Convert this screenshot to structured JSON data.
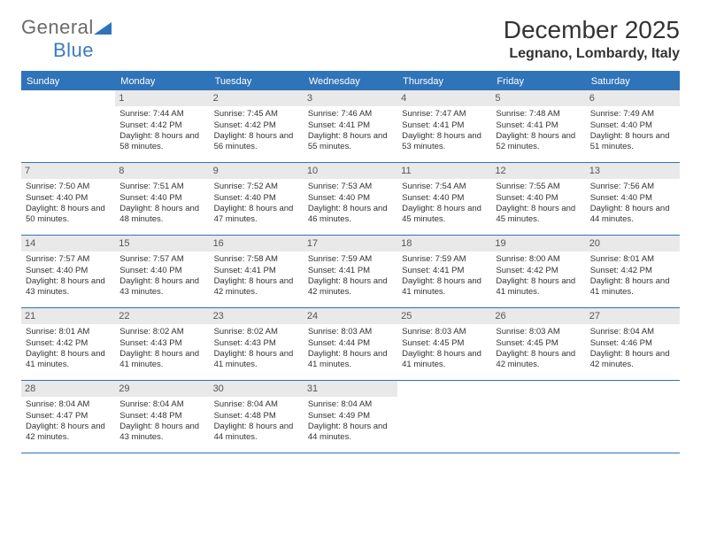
{
  "logo": {
    "general": "General",
    "blue": "Blue"
  },
  "title": "December 2025",
  "location": "Legnano, Lombardy, Italy",
  "dayHeaders": [
    "Sunday",
    "Monday",
    "Tuesday",
    "Wednesday",
    "Thursday",
    "Friday",
    "Saturday"
  ],
  "colors": {
    "headerBg": "#2f73b8",
    "dayNumBg": "#e9e9e9",
    "text": "#333333",
    "logoBlue": "#3b7bbf"
  },
  "startDayIndex": 1,
  "days": [
    {
      "n": 1,
      "sunrise": "7:44 AM",
      "sunset": "4:42 PM",
      "daylight": "8 hours and 58 minutes."
    },
    {
      "n": 2,
      "sunrise": "7:45 AM",
      "sunset": "4:42 PM",
      "daylight": "8 hours and 56 minutes."
    },
    {
      "n": 3,
      "sunrise": "7:46 AM",
      "sunset": "4:41 PM",
      "daylight": "8 hours and 55 minutes."
    },
    {
      "n": 4,
      "sunrise": "7:47 AM",
      "sunset": "4:41 PM",
      "daylight": "8 hours and 53 minutes."
    },
    {
      "n": 5,
      "sunrise": "7:48 AM",
      "sunset": "4:41 PM",
      "daylight": "8 hours and 52 minutes."
    },
    {
      "n": 6,
      "sunrise": "7:49 AM",
      "sunset": "4:40 PM",
      "daylight": "8 hours and 51 minutes."
    },
    {
      "n": 7,
      "sunrise": "7:50 AM",
      "sunset": "4:40 PM",
      "daylight": "8 hours and 50 minutes."
    },
    {
      "n": 8,
      "sunrise": "7:51 AM",
      "sunset": "4:40 PM",
      "daylight": "8 hours and 48 minutes."
    },
    {
      "n": 9,
      "sunrise": "7:52 AM",
      "sunset": "4:40 PM",
      "daylight": "8 hours and 47 minutes."
    },
    {
      "n": 10,
      "sunrise": "7:53 AM",
      "sunset": "4:40 PM",
      "daylight": "8 hours and 46 minutes."
    },
    {
      "n": 11,
      "sunrise": "7:54 AM",
      "sunset": "4:40 PM",
      "daylight": "8 hours and 45 minutes."
    },
    {
      "n": 12,
      "sunrise": "7:55 AM",
      "sunset": "4:40 PM",
      "daylight": "8 hours and 45 minutes."
    },
    {
      "n": 13,
      "sunrise": "7:56 AM",
      "sunset": "4:40 PM",
      "daylight": "8 hours and 44 minutes."
    },
    {
      "n": 14,
      "sunrise": "7:57 AM",
      "sunset": "4:40 PM",
      "daylight": "8 hours and 43 minutes."
    },
    {
      "n": 15,
      "sunrise": "7:57 AM",
      "sunset": "4:40 PM",
      "daylight": "8 hours and 43 minutes."
    },
    {
      "n": 16,
      "sunrise": "7:58 AM",
      "sunset": "4:41 PM",
      "daylight": "8 hours and 42 minutes."
    },
    {
      "n": 17,
      "sunrise": "7:59 AM",
      "sunset": "4:41 PM",
      "daylight": "8 hours and 42 minutes."
    },
    {
      "n": 18,
      "sunrise": "7:59 AM",
      "sunset": "4:41 PM",
      "daylight": "8 hours and 41 minutes."
    },
    {
      "n": 19,
      "sunrise": "8:00 AM",
      "sunset": "4:42 PM",
      "daylight": "8 hours and 41 minutes."
    },
    {
      "n": 20,
      "sunrise": "8:01 AM",
      "sunset": "4:42 PM",
      "daylight": "8 hours and 41 minutes."
    },
    {
      "n": 21,
      "sunrise": "8:01 AM",
      "sunset": "4:42 PM",
      "daylight": "8 hours and 41 minutes."
    },
    {
      "n": 22,
      "sunrise": "8:02 AM",
      "sunset": "4:43 PM",
      "daylight": "8 hours and 41 minutes."
    },
    {
      "n": 23,
      "sunrise": "8:02 AM",
      "sunset": "4:43 PM",
      "daylight": "8 hours and 41 minutes."
    },
    {
      "n": 24,
      "sunrise": "8:03 AM",
      "sunset": "4:44 PM",
      "daylight": "8 hours and 41 minutes."
    },
    {
      "n": 25,
      "sunrise": "8:03 AM",
      "sunset": "4:45 PM",
      "daylight": "8 hours and 41 minutes."
    },
    {
      "n": 26,
      "sunrise": "8:03 AM",
      "sunset": "4:45 PM",
      "daylight": "8 hours and 42 minutes."
    },
    {
      "n": 27,
      "sunrise": "8:04 AM",
      "sunset": "4:46 PM",
      "daylight": "8 hours and 42 minutes."
    },
    {
      "n": 28,
      "sunrise": "8:04 AM",
      "sunset": "4:47 PM",
      "daylight": "8 hours and 42 minutes."
    },
    {
      "n": 29,
      "sunrise": "8:04 AM",
      "sunset": "4:48 PM",
      "daylight": "8 hours and 43 minutes."
    },
    {
      "n": 30,
      "sunrise": "8:04 AM",
      "sunset": "4:48 PM",
      "daylight": "8 hours and 44 minutes."
    },
    {
      "n": 31,
      "sunrise": "8:04 AM",
      "sunset": "4:49 PM",
      "daylight": "8 hours and 44 minutes."
    }
  ]
}
